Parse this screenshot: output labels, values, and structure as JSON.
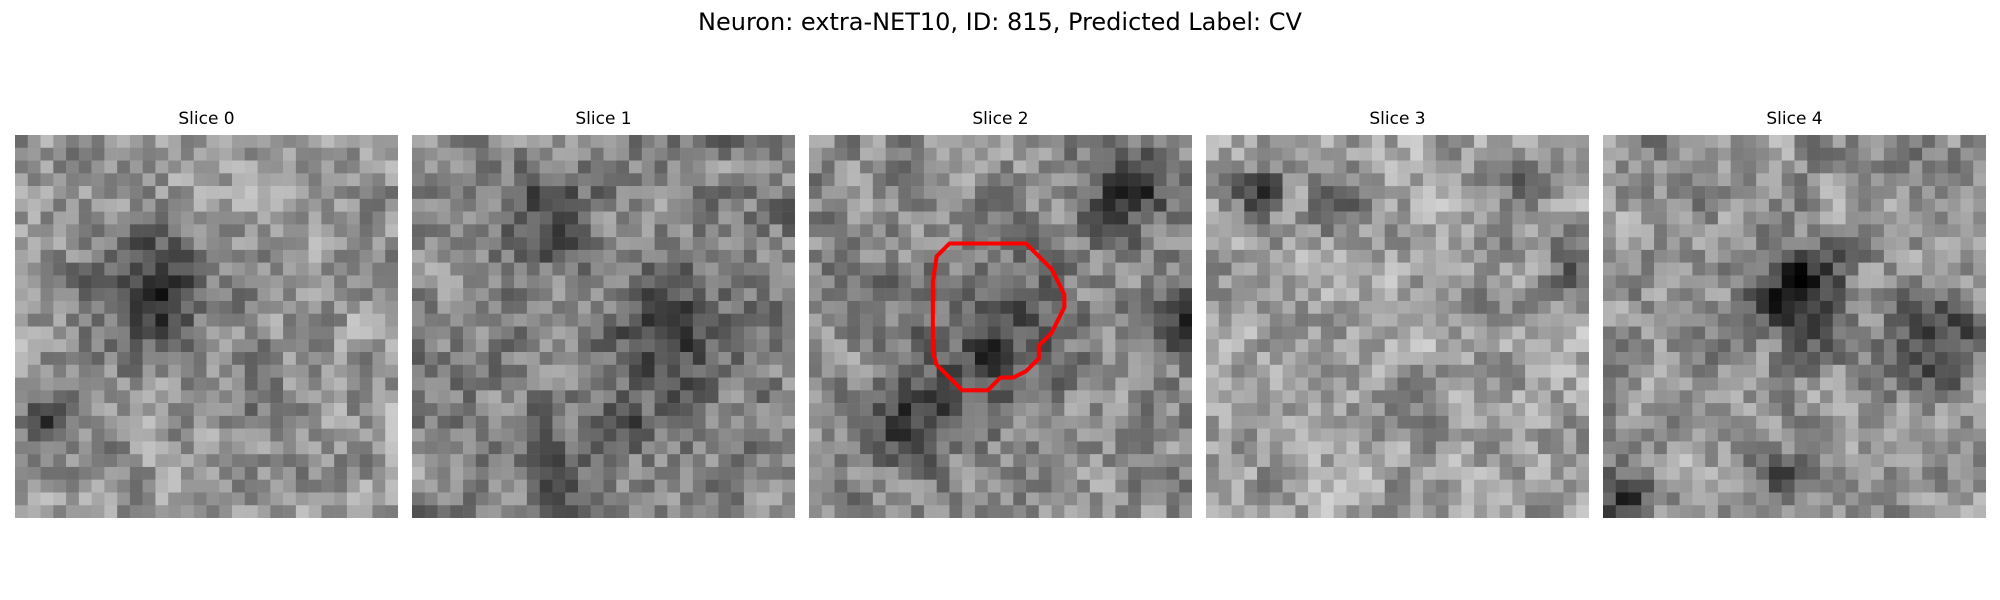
{
  "figure": {
    "title": "Neuron: extra-NET10, ID: 815, Predicted Label: CV"
  },
  "panels": [
    {
      "title": "Slice 0",
      "seed": 11,
      "base": 150,
      "spots": [
        {
          "gx": 10,
          "gy": 12,
          "r": 3.0,
          "d": 120
        },
        {
          "gx": 2,
          "gy": 22,
          "r": 1.5,
          "d": 90
        },
        {
          "gx": 18,
          "gy": 20,
          "r": 1.5,
          "d": 50
        }
      ]
    },
    {
      "title": "Slice 1",
      "seed": 23,
      "base": 130,
      "spots": [
        {
          "gx": 10,
          "gy": 6,
          "r": 2.5,
          "d": 70
        },
        {
          "gx": 20,
          "gy": 15,
          "r": 3.0,
          "d": 80
        },
        {
          "gx": 11,
          "gy": 26,
          "r": 1.5,
          "d": 70
        },
        {
          "gx": 16,
          "gy": 22,
          "r": 1.5,
          "d": 60
        }
      ]
    },
    {
      "title": "Slice 2",
      "seed": 37,
      "base": 140,
      "spots": [
        {
          "gx": 14,
          "gy": 15,
          "r": 4.0,
          "d": 70
        },
        {
          "gx": 7,
          "gy": 22,
          "r": 2.5,
          "d": 80
        },
        {
          "gx": 25,
          "gy": 4,
          "r": 2.5,
          "d": 90
        },
        {
          "gx": 29,
          "gy": 14,
          "r": 1.5,
          "d": 80
        }
      ],
      "roi": true
    },
    {
      "title": "Slice 3",
      "seed": 51,
      "base": 160,
      "spots": [
        {
          "gx": 4,
          "gy": 4,
          "r": 1.3,
          "d": 120
        },
        {
          "gx": 10,
          "gy": 5,
          "r": 1.5,
          "d": 110
        },
        {
          "gx": 24,
          "gy": 3,
          "r": 1.5,
          "d": 80
        },
        {
          "gx": 29,
          "gy": 10,
          "r": 2.0,
          "d": 70
        }
      ]
    },
    {
      "title": "Slice 4",
      "seed": 67,
      "base": 145,
      "spots": [
        {
          "gx": 15,
          "gy": 12,
          "r": 2.5,
          "d": 120
        },
        {
          "gx": 26,
          "gy": 16,
          "r": 2.5,
          "d": 90
        },
        {
          "gx": 1,
          "gy": 28,
          "r": 1.5,
          "d": 90
        },
        {
          "gx": 13,
          "gy": 26,
          "r": 1.5,
          "d": 60
        }
      ]
    }
  ],
  "colors": {
    "roi_outline": "#ff0000"
  }
}
